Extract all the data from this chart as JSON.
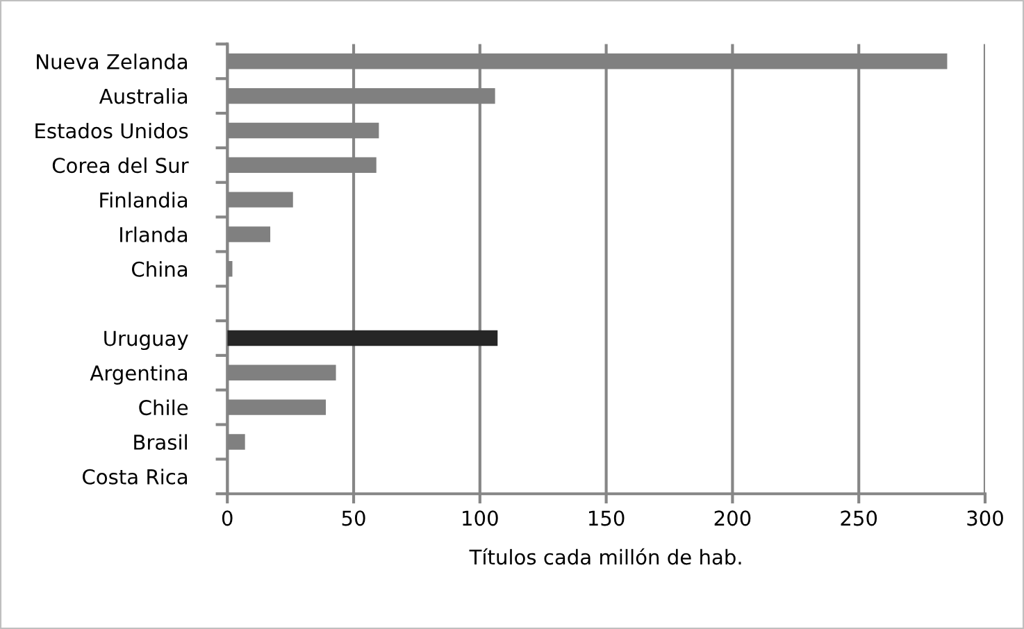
{
  "chart_data": {
    "type": "bar",
    "orientation": "horizontal",
    "xlabel": "Títulos cada millón de hab.",
    "categories": [
      "Nueva Zelanda",
      "Australia",
      "Estados Unidos",
      "Corea del Sur",
      "Finlandia",
      "Irlanda",
      "China",
      null,
      "Uruguay",
      "Argentina",
      "Chile",
      "Brasil",
      "Costa Rica"
    ],
    "values": [
      285,
      106,
      60,
      59,
      26,
      17,
      2,
      null,
      107,
      43,
      39,
      7,
      0
    ],
    "colors": [
      "#808080",
      "#808080",
      "#808080",
      "#808080",
      "#808080",
      "#808080",
      "#808080",
      "#808080",
      "#262626",
      "#808080",
      "#808080",
      "#808080",
      "#808080"
    ],
    "xlim": [
      0,
      300
    ],
    "xticks": [
      0,
      50,
      100,
      150,
      200,
      250,
      300
    ],
    "grid": "x",
    "legend": false
  }
}
